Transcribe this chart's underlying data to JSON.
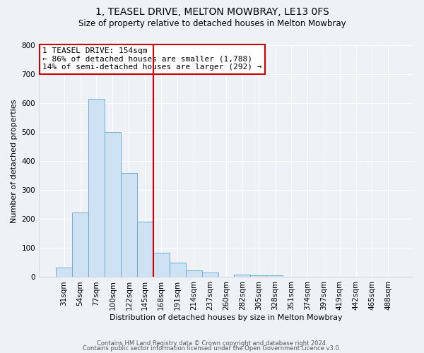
{
  "title1": "1, TEASEL DRIVE, MELTON MOWBRAY, LE13 0FS",
  "title2": "Size of property relative to detached houses in Melton Mowbray",
  "xlabel": "Distribution of detached houses by size in Melton Mowbray",
  "ylabel": "Number of detached properties",
  "bin_labels": [
    "31sqm",
    "54sqm",
    "77sqm",
    "100sqm",
    "122sqm",
    "145sqm",
    "168sqm",
    "191sqm",
    "214sqm",
    "237sqm",
    "260sqm",
    "282sqm",
    "305sqm",
    "328sqm",
    "351sqm",
    "374sqm",
    "397sqm",
    "419sqm",
    "442sqm",
    "465sqm",
    "488sqm"
  ],
  "bar_heights": [
    32,
    222,
    615,
    500,
    360,
    190,
    85,
    50,
    22,
    15,
    0,
    8,
    5,
    5,
    0,
    0,
    0,
    0,
    0,
    0,
    0
  ],
  "bar_color": "#cfe2f3",
  "bar_edge_color": "#6baed6",
  "vline_x_index": 6,
  "vline_color": "#cc0000",
  "ylim": [
    0,
    800
  ],
  "yticks": [
    0,
    100,
    200,
    300,
    400,
    500,
    600,
    700,
    800
  ],
  "annotation_title": "1 TEASEL DRIVE: 154sqm",
  "annotation_line1": "← 86% of detached houses are smaller (1,788)",
  "annotation_line2": "14% of semi-detached houses are larger (292) →",
  "footer1": "Contains HM Land Registry data © Crown copyright and database right 2024.",
  "footer2": "Contains public sector information licensed under the Open Government Licence v3.0.",
  "background_color": "#eef2f7",
  "plot_bg_color": "#eef2f7",
  "grid_color": "#ffffff",
  "ann_fontsize": 8,
  "title1_fontsize": 10,
  "title2_fontsize": 8.5,
  "xlabel_fontsize": 8,
  "ylabel_fontsize": 8,
  "tick_fontsize": 7.5,
  "footer_fontsize": 6
}
